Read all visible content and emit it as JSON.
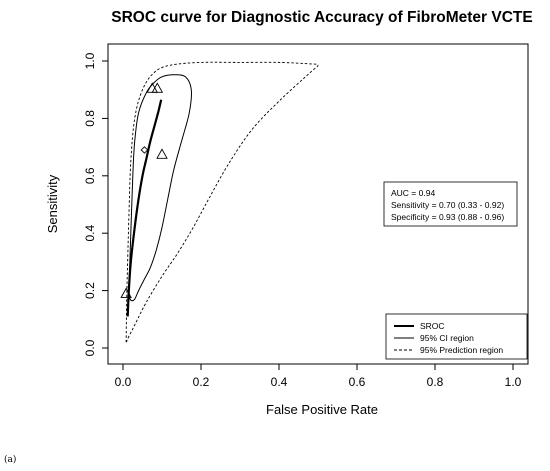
{
  "chart_data": {
    "type": "line",
    "title": "SROC curve for Diagnostic Accuracy of FibroMeter VCTE",
    "xlabel": "False Positive Rate",
    "ylabel": "Sensitivity",
    "xlim": [
      0,
      1
    ],
    "ylim": [
      0,
      1
    ],
    "xticks": [
      "0.0",
      "0.2",
      "0.4",
      "0.6",
      "0.8",
      "1.0"
    ],
    "yticks": [
      "0.0",
      "0.2",
      "0.4",
      "0.6",
      "0.8",
      "1.0"
    ],
    "grid": false,
    "series": [
      {
        "name": "SROC",
        "style": "thick-solid",
        "x": [
          0.012,
          0.015,
          0.02,
          0.03,
          0.04,
          0.05,
          0.06,
          0.07,
          0.08,
          0.09,
          0.098
        ],
        "y": [
          0.11,
          0.2,
          0.3,
          0.42,
          0.52,
          0.6,
          0.66,
          0.72,
          0.77,
          0.82,
          0.865
        ]
      },
      {
        "name": "95% CI region",
        "style": "solid",
        "x": [
          0.015,
          0.02,
          0.025,
          0.03,
          0.04,
          0.06,
          0.08,
          0.1,
          0.13,
          0.16,
          0.175,
          0.17,
          0.15,
          0.13,
          0.115,
          0.1,
          0.085,
          0.07,
          0.055,
          0.04,
          0.03,
          0.022,
          0.017,
          0.015
        ],
        "y": [
          0.2,
          0.4,
          0.6,
          0.72,
          0.82,
          0.89,
          0.925,
          0.945,
          0.952,
          0.945,
          0.9,
          0.82,
          0.72,
          0.62,
          0.52,
          0.42,
          0.34,
          0.28,
          0.24,
          0.2,
          0.17,
          0.165,
          0.175,
          0.2
        ]
      },
      {
        "name": "95% Prediction region",
        "style": "dashed",
        "x": [
          0.008,
          0.01,
          0.015,
          0.02,
          0.03,
          0.05,
          0.08,
          0.12,
          0.2,
          0.3,
          0.4,
          0.48,
          0.5,
          0.48,
          0.4,
          0.33,
          0.27,
          0.22,
          0.18,
          0.14,
          0.1,
          0.06,
          0.03,
          0.015,
          0.008
        ],
        "y": [
          0.02,
          0.2,
          0.45,
          0.65,
          0.8,
          0.9,
          0.96,
          0.985,
          0.995,
          0.995,
          0.995,
          0.99,
          0.985,
          0.96,
          0.86,
          0.76,
          0.64,
          0.52,
          0.42,
          0.33,
          0.25,
          0.16,
          0.08,
          0.04,
          0.02
        ]
      }
    ],
    "study_points": [
      {
        "x": 0.008,
        "y": 0.19
      },
      {
        "x": 0.075,
        "y": 0.905
      },
      {
        "x": 0.088,
        "y": 0.905
      },
      {
        "x": 0.1,
        "y": 0.675
      }
    ],
    "summary_point": {
      "x": 0.055,
      "y": 0.69
    },
    "legend": {
      "placement": "bottom-right",
      "entries": [
        {
          "label": "SROC",
          "style": "thick-solid"
        },
        {
          "label": "95% CI region",
          "style": "solid"
        },
        {
          "label": "95% Prediction region",
          "style": "dashed"
        }
      ]
    },
    "stats_box": {
      "placement": "right",
      "lines": [
        "AUC = 0.94",
        "Sensitivity = 0.70 (0.33 - 0.92)",
        "Specificity = 0.93 (0.88 - 0.96)"
      ]
    }
  },
  "caption": "(a)"
}
